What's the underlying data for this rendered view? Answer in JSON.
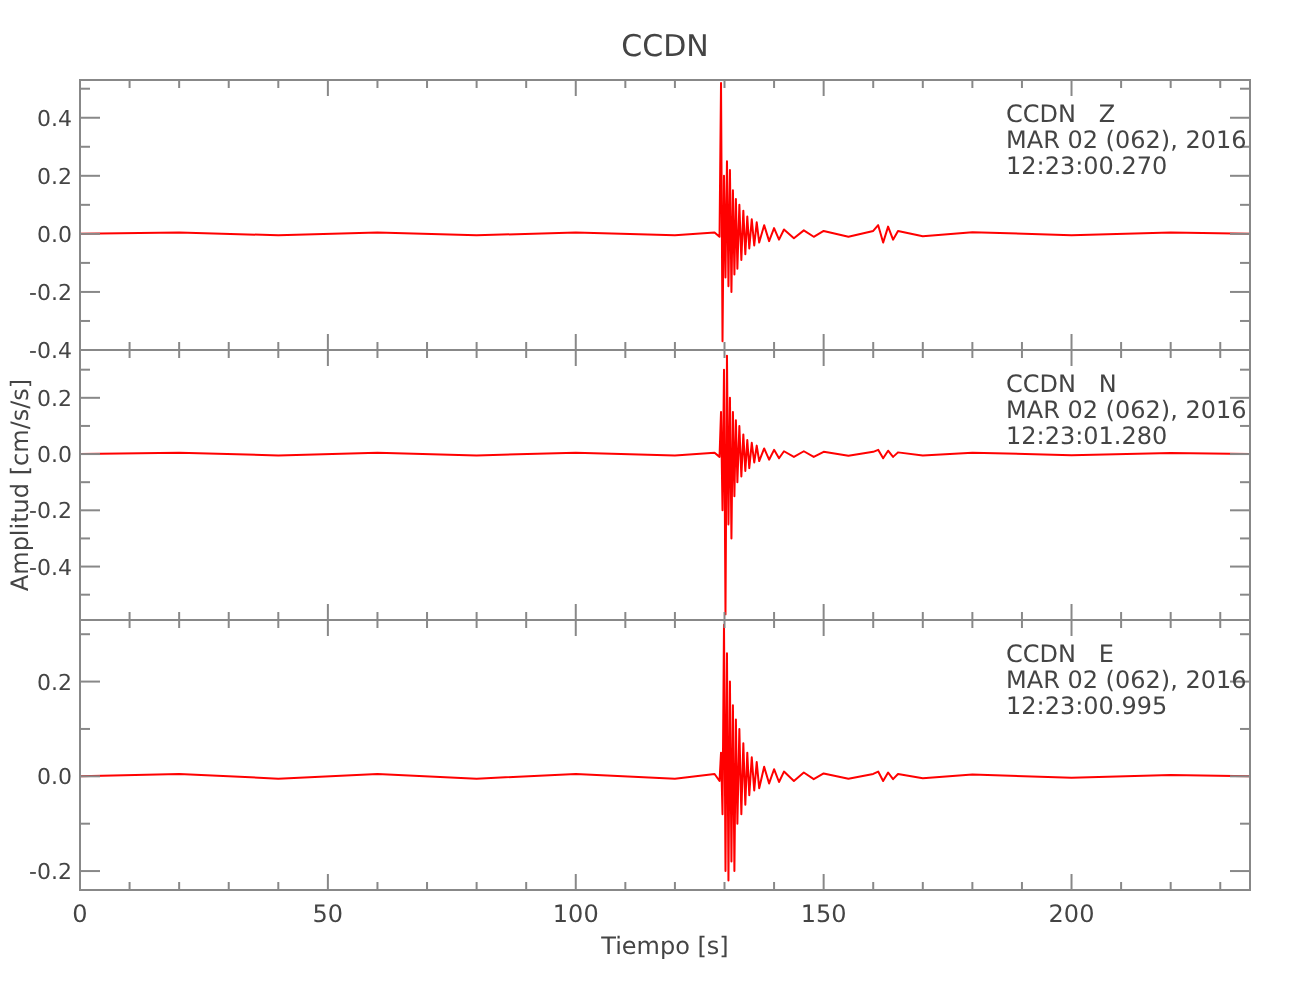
{
  "chart_data": [
    {
      "type": "line",
      "title": "CCDN",
      "tick_labels": "y",
      "annotations": [
        "CCDN   Z",
        "MAR 02 (062), 2016",
        "12:23:00.270"
      ],
      "x": [
        0,
        20,
        40,
        60,
        80,
        100,
        120,
        128,
        129,
        129.3,
        129.6,
        129.9,
        130.2,
        130.5,
        130.8,
        131.1,
        131.4,
        131.7,
        132,
        132.3,
        132.6,
        133,
        133.4,
        133.8,
        134.2,
        134.6,
        135,
        135.5,
        136,
        136.5,
        137,
        138,
        139,
        140,
        141,
        142,
        144,
        146,
        148,
        150,
        155,
        160,
        161,
        162,
        163,
        164,
        165,
        170,
        180,
        200,
        220,
        236
      ],
      "series": [
        {
          "color": "#ff0000",
          "values": [
            0,
            0.005,
            -0.005,
            0.005,
            -0.005,
            0.005,
            -0.005,
            0.005,
            -0.01,
            0.52,
            -0.37,
            0.2,
            -0.15,
            0.25,
            -0.18,
            0.22,
            -0.2,
            0.15,
            -0.14,
            0.12,
            -0.12,
            0.1,
            -0.09,
            0.08,
            -0.07,
            0.06,
            -0.05,
            0.05,
            -0.04,
            0.04,
            -0.03,
            0.03,
            -0.025,
            0.02,
            -0.02,
            0.015,
            -0.015,
            0.012,
            -0.01,
            0.01,
            -0.01,
            0.01,
            0.03,
            -0.03,
            0.025,
            -0.02,
            0.01,
            -0.008,
            0.006,
            -0.005,
            0.005,
            0
          ]
        }
      ],
      "xlim": [
        0,
        236
      ],
      "xticks": [
        0,
        {
          "value": 10,
          "label": null
        },
        {
          "value": 20,
          "label": null
        },
        {
          "value": 30,
          "label": null
        },
        {
          "value": 40,
          "label": null
        },
        50,
        {
          "value": 60,
          "label": null
        },
        {
          "value": 70,
          "label": null
        },
        {
          "value": 80,
          "label": null
        },
        {
          "value": 90,
          "label": null
        },
        100,
        {
          "value": 110,
          "label": null
        },
        {
          "value": 120,
          "label": null
        },
        {
          "value": 130,
          "label": null
        },
        {
          "value": 140,
          "label": null
        },
        150,
        {
          "value": 160,
          "label": null
        },
        {
          "value": 170,
          "label": null
        },
        {
          "value": 180,
          "label": null
        },
        {
          "value": 190,
          "label": null
        },
        200,
        {
          "value": 210,
          "label": null
        },
        {
          "value": 220,
          "label": null
        },
        {
          "value": 230,
          "label": null
        }
      ],
      "ylim": [
        -0.4,
        0.53
      ],
      "yticks": [
        {
          "value": -0.4,
          "label": "-0.4"
        },
        {
          "value": -0.3,
          "label": null
        },
        {
          "value": -0.2,
          "label": "-0.2"
        },
        {
          "value": -0.1,
          "label": null
        },
        {
          "value": 0,
          "label": "0.0"
        },
        {
          "value": 0.1,
          "label": null
        },
        {
          "value": 0.2,
          "label": "0.2"
        },
        {
          "value": 0.3,
          "label": null
        },
        {
          "value": 0.4,
          "label": "0.4"
        },
        {
          "value": 0.5,
          "label": null
        }
      ]
    },
    {
      "type": "line",
      "ylabel": "Amplitud [cm/s/s]",
      "tick_labels": "y",
      "annotations": [
        "CCDN   N",
        "MAR 02 (062), 2016",
        "12:23:01.280"
      ],
      "x": [
        0,
        20,
        40,
        60,
        80,
        100,
        120,
        128,
        129,
        129.3,
        129.6,
        129.9,
        130.2,
        130.5,
        130.8,
        131.1,
        131.4,
        131.7,
        132,
        132.3,
        132.6,
        133,
        133.4,
        133.8,
        134.2,
        134.6,
        135,
        135.5,
        136,
        136.5,
        137,
        138,
        139,
        140,
        141,
        142,
        144,
        146,
        148,
        150,
        155,
        160,
        161,
        162,
        163,
        164,
        165,
        170,
        180,
        200,
        220,
        236
      ],
      "series": [
        {
          "color": "#ff0000",
          "values": [
            0,
            0.005,
            -0.005,
            0.005,
            -0.005,
            0.005,
            -0.005,
            0.005,
            -0.01,
            0.15,
            -0.2,
            0.3,
            -0.57,
            0.35,
            -0.25,
            0.2,
            -0.3,
            0.15,
            -0.15,
            0.12,
            -0.1,
            0.1,
            -0.08,
            0.07,
            -0.06,
            0.05,
            -0.05,
            0.04,
            -0.03,
            0.03,
            -0.025,
            0.02,
            -0.02,
            0.015,
            -0.015,
            0.01,
            -0.01,
            0.01,
            -0.01,
            0.008,
            -0.006,
            0.008,
            0.015,
            -0.015,
            0.012,
            -0.01,
            0.006,
            -0.005,
            0.005,
            -0.004,
            0.004,
            0
          ]
        }
      ],
      "xlim": [
        0,
        236
      ],
      "xticks": [
        0,
        {
          "value": 10,
          "label": null
        },
        {
          "value": 20,
          "label": null
        },
        {
          "value": 30,
          "label": null
        },
        {
          "value": 40,
          "label": null
        },
        50,
        {
          "value": 60,
          "label": null
        },
        {
          "value": 70,
          "label": null
        },
        {
          "value": 80,
          "label": null
        },
        {
          "value": 90,
          "label": null
        },
        100,
        {
          "value": 110,
          "label": null
        },
        {
          "value": 120,
          "label": null
        },
        {
          "value": 130,
          "label": null
        },
        {
          "value": 140,
          "label": null
        },
        150,
        {
          "value": 160,
          "label": null
        },
        {
          "value": 170,
          "label": null
        },
        {
          "value": 180,
          "label": null
        },
        {
          "value": 190,
          "label": null
        },
        200,
        {
          "value": 210,
          "label": null
        },
        {
          "value": 220,
          "label": null
        },
        {
          "value": 230,
          "label": null
        }
      ],
      "ylim": [
        -0.59,
        0.37
      ],
      "yticks": [
        {
          "value": -0.5,
          "label": null
        },
        {
          "value": -0.4,
          "label": "-0.4"
        },
        {
          "value": -0.3,
          "label": null
        },
        {
          "value": -0.2,
          "label": "-0.2"
        },
        {
          "value": -0.1,
          "label": null
        },
        {
          "value": 0,
          "label": "0.0"
        },
        {
          "value": 0.1,
          "label": null
        },
        {
          "value": 0.2,
          "label": "0.2"
        },
        {
          "value": 0.3,
          "label": null
        }
      ]
    },
    {
      "type": "line",
      "xlabel": "Tiempo [s]",
      "annotations": [
        "CCDN   E",
        "MAR 02 (062), 2016",
        "12:23:00.995"
      ],
      "x": [
        0,
        20,
        40,
        60,
        80,
        100,
        120,
        128,
        129,
        129.3,
        129.6,
        129.9,
        130.2,
        130.5,
        130.8,
        131.1,
        131.4,
        131.7,
        132,
        132.3,
        132.6,
        133,
        133.4,
        133.8,
        134.2,
        134.6,
        135,
        135.5,
        136,
        136.5,
        137,
        138,
        139,
        140,
        141,
        142,
        144,
        146,
        148,
        150,
        155,
        160,
        161,
        162,
        163,
        164,
        165,
        170,
        180,
        200,
        220,
        236
      ],
      "series": [
        {
          "color": "#ff0000",
          "values": [
            0,
            0.005,
            -0.005,
            0.005,
            -0.005,
            0.005,
            -0.005,
            0.005,
            -0.01,
            0.05,
            -0.08,
            0.32,
            -0.2,
            0.26,
            -0.22,
            0.2,
            -0.18,
            0.15,
            -0.2,
            0.12,
            -0.1,
            0.1,
            -0.08,
            0.07,
            -0.06,
            0.05,
            -0.04,
            0.04,
            -0.03,
            0.03,
            -0.025,
            0.02,
            -0.015,
            0.015,
            -0.012,
            0.01,
            -0.01,
            0.008,
            -0.006,
            0.006,
            -0.005,
            0.005,
            0.01,
            -0.01,
            0.008,
            -0.006,
            0.005,
            -0.004,
            0.004,
            -0.003,
            0.003,
            0
          ]
        }
      ],
      "xlim": [
        0,
        236
      ],
      "xticks": [
        0,
        {
          "value": 10,
          "label": null
        },
        {
          "value": 20,
          "label": null
        },
        {
          "value": 30,
          "label": null
        },
        {
          "value": 40,
          "label": null
        },
        50,
        {
          "value": 60,
          "label": null
        },
        {
          "value": 70,
          "label": null
        },
        {
          "value": 80,
          "label": null
        },
        {
          "value": 90,
          "label": null
        },
        100,
        {
          "value": 110,
          "label": null
        },
        {
          "value": 120,
          "label": null
        },
        {
          "value": 130,
          "label": null
        },
        {
          "value": 140,
          "label": null
        },
        150,
        {
          "value": 160,
          "label": null
        },
        {
          "value": 170,
          "label": null
        },
        {
          "value": 180,
          "label": null
        },
        {
          "value": 190,
          "label": null
        },
        200,
        {
          "value": 210,
          "label": null
        },
        {
          "value": 220,
          "label": null
        },
        {
          "value": 230,
          "label": null
        }
      ],
      "ylim": [
        -0.24,
        0.33
      ],
      "yticks": [
        {
          "value": -0.2,
          "label": "-0.2"
        },
        {
          "value": -0.1,
          "label": null
        },
        {
          "value": 0,
          "label": "0.0"
        },
        {
          "value": 0.1,
          "label": null
        },
        {
          "value": 0.2,
          "label": "0.2"
        },
        {
          "value": 0.3,
          "label": null
        }
      ]
    }
  ]
}
